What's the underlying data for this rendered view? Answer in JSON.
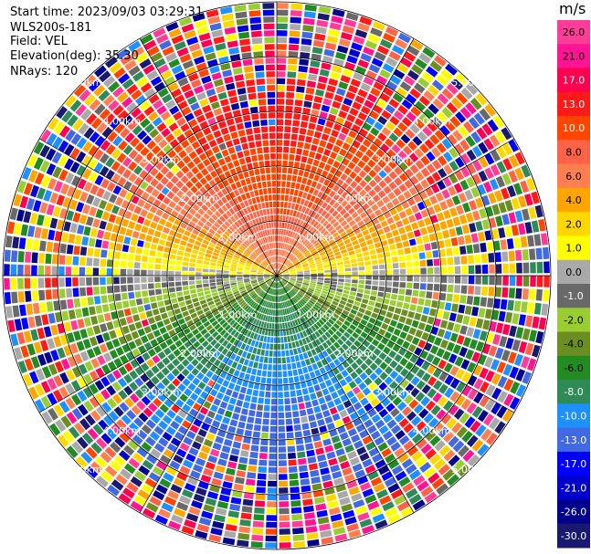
{
  "info": {
    "start_time": "Start time: 2023/09/03 03:29:31",
    "instrument": "WLS200s-181",
    "field": "Field: VEL",
    "elevation": "Elevation(deg): 35.30",
    "nrays": "NRays: 120"
  },
  "colorbar": {
    "unit": "m/s",
    "ticks": [
      "26.0",
      "21.0",
      "17.0",
      "13.0",
      "10.0",
      "8.0",
      "6.0",
      "4.0",
      "2.0",
      "1.0",
      "0.0",
      "-1.0",
      "-2.0",
      "-4.0",
      "-6.0",
      "-8.0",
      "-10.0",
      "-13.0",
      "-17.0",
      "-21.0",
      "-26.0",
      "-30.0"
    ],
    "colors": [
      "#ff3d99",
      "#ff1493",
      "#ff0050",
      "#ff1a1a",
      "#ff4500",
      "#ff6347",
      "#ff7f50",
      "#ffa500",
      "#ffd700",
      "#ffff00",
      "#a9a9a9",
      "#696969",
      "#9acd32",
      "#6b8e23",
      "#228b22",
      "#2e8b57",
      "#1e90ff",
      "#4169e1",
      "#0000ff",
      "#0000cd",
      "#00008b",
      "#191970"
    ]
  },
  "chart_data": {
    "type": "heatmap",
    "projection": "polar PPI",
    "field": "VEL",
    "units": "m/s",
    "nrays": 120,
    "elevation_deg": 35.3,
    "range_ring_labels": [
      "1.00km",
      "2.00km",
      "3.00km",
      "4.00km",
      "5.00km"
    ],
    "range_ring_km": [
      1,
      2,
      3,
      4,
      5
    ],
    "max_range_km": 5,
    "pattern": "positive (away) velocities north, negative (toward) south; noisy at far range"
  }
}
